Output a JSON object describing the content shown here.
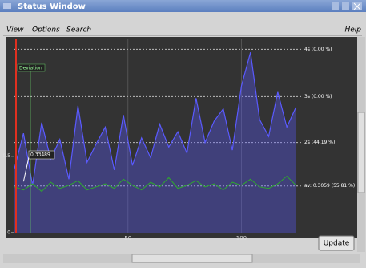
{
  "window": {
    "title": "Status Window"
  },
  "menu": [
    "View",
    "Options",
    "Search"
  ],
  "help": "Help",
  "button": "Update",
  "chart_data": {
    "type": "line",
    "x": [
      0,
      4,
      8,
      12,
      16,
      20,
      24,
      28,
      32,
      36,
      40,
      44,
      48,
      52,
      56,
      60,
      64,
      68,
      72,
      76,
      80,
      84,
      88,
      92,
      96,
      100,
      104,
      108,
      112,
      116,
      120,
      124
    ],
    "series": [
      {
        "color": "#5a5aff",
        "values": [
          0.42,
          0.65,
          0.31,
          0.72,
          0.48,
          0.61,
          0.35,
          0.83,
          0.46,
          0.58,
          0.69,
          0.41,
          0.77,
          0.44,
          0.62,
          0.49,
          0.71,
          0.56,
          0.66,
          0.52,
          0.88,
          0.59,
          0.73,
          0.81,
          0.54,
          0.96,
          1.18,
          0.74,
          0.63,
          0.92,
          0.69,
          0.82
        ]
      },
      {
        "color": "#2ea82e",
        "values": [
          0.3,
          0.28,
          0.32,
          0.27,
          0.33,
          0.29,
          0.31,
          0.34,
          0.28,
          0.3,
          0.32,
          0.29,
          0.35,
          0.31,
          0.28,
          0.33,
          0.3,
          0.36,
          0.29,
          0.31,
          0.34,
          0.3,
          0.32,
          0.28,
          0.33,
          0.31,
          0.35,
          0.3,
          0.29,
          0.32,
          0.37,
          0.31
        ]
      }
    ],
    "xlim": [
      0,
      127
    ],
    "ylim": [
      0,
      1.27
    ],
    "xticks": [
      50,
      100
    ],
    "yticks": [
      0,
      0.5
    ],
    "levels": [
      {
        "value": 1.2,
        "label": "4s (0.00 %)"
      },
      {
        "value": 0.89,
        "label": "3s (0.00 %)"
      },
      {
        "value": 0.59,
        "label": "2s (44.19 %)"
      },
      {
        "value": 0.3059,
        "label": "av: 0.3059 (55.81 %)"
      }
    ],
    "deviation": {
      "label": "Deviation",
      "x": 7
    },
    "cursor": {
      "x": 4,
      "value": 0.33489
    }
  }
}
